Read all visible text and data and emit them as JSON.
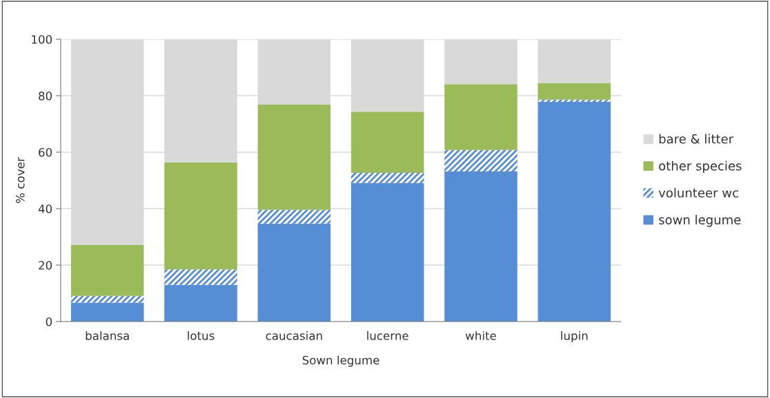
{
  "chart_data": {
    "type": "bar",
    "stacked": true,
    "xlabel": "Sown legume",
    "ylabel": "% cover",
    "categories": [
      "balansa",
      "lotus",
      "caucasian",
      "lucerne",
      "white",
      "lupin"
    ],
    "series": [
      {
        "name": "sown legume",
        "color": "#558ed5",
        "values": [
          6.7,
          13.0,
          34.7,
          49.1,
          53.2,
          77.8
        ]
      },
      {
        "name": "volunteer wc",
        "color": "#558ed5",
        "values": [
          2.4,
          5.5,
          4.9,
          3.6,
          7.6,
          0.8
        ]
      },
      {
        "name": "other species",
        "color": "#9bbb59",
        "values": [
          18.1,
          37.9,
          37.2,
          21.6,
          23.3,
          5.9
        ]
      },
      {
        "name": "bare & litter",
        "color": "#d9d9d9",
        "values": [
          72.8,
          43.6,
          23.2,
          25.7,
          15.9,
          15.5
        ]
      }
    ],
    "ylim": [
      0,
      100
    ],
    "yticks": [
      0,
      20,
      40,
      60,
      80,
      100
    ],
    "grid": "y",
    "legend": "right"
  }
}
